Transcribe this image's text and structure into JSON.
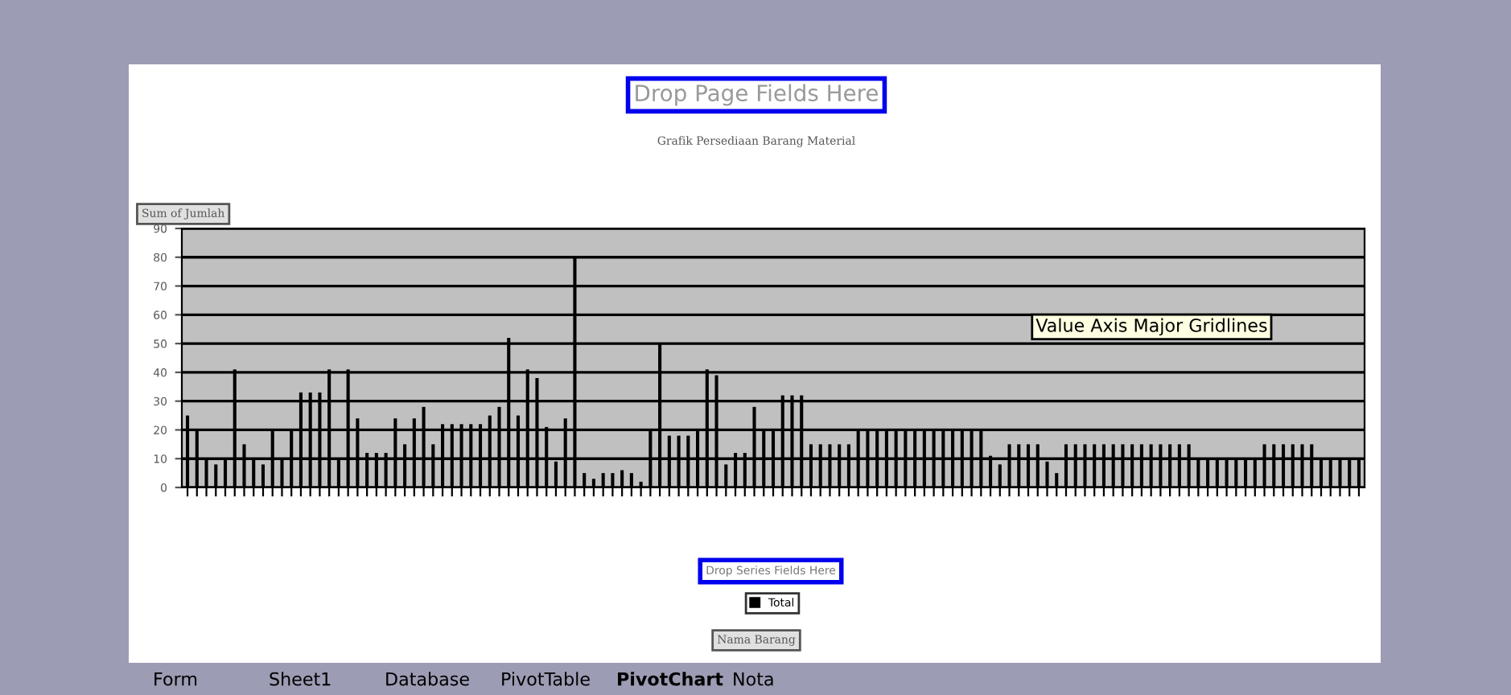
{
  "chart_data": {
    "type": "bar",
    "title": "Grafik Persediaan Barang Material",
    "ylabel": "Sum of Jumlah",
    "categories": [
      null,
      null,
      null,
      null,
      null,
      null,
      null,
      null,
      null,
      null,
      null,
      null,
      null,
      null,
      null,
      null,
      null,
      null,
      null,
      null,
      null,
      null,
      null,
      null,
      null,
      null,
      null,
      null,
      null,
      null,
      null,
      null,
      null,
      null,
      null,
      null,
      null,
      null,
      null,
      null,
      null,
      null,
      null,
      null,
      null,
      null,
      null,
      null,
      null,
      null,
      null,
      null,
      null,
      null,
      null,
      null,
      null,
      null,
      null,
      null,
      null,
      null,
      null,
      null,
      null,
      null,
      null,
      null,
      null,
      null,
      null,
      null,
      null,
      null,
      null,
      null,
      null,
      null,
      null,
      null,
      null,
      null,
      null,
      null,
      null,
      null,
      null,
      null,
      null,
      null,
      null,
      null,
      null,
      null,
      null,
      null,
      null,
      null,
      null,
      null,
      null,
      null,
      null,
      null,
      null,
      null,
      null,
      null,
      null,
      null,
      null,
      null,
      null,
      null,
      null,
      null,
      null,
      null,
      null,
      null,
      null,
      null,
      null,
      null,
      null
    ],
    "series": [
      {
        "name": "Total",
        "color": "#000000",
        "values": [
          25,
          20,
          10,
          8,
          10,
          41,
          15,
          10,
          8,
          20,
          10,
          20,
          33,
          33,
          33,
          41,
          10,
          41,
          24,
          12,
          12,
          12,
          24,
          15,
          24,
          28,
          15,
          22,
          22,
          22,
          22,
          22,
          25,
          28,
          52,
          25,
          41,
          38,
          21,
          9,
          24,
          80,
          5,
          3,
          5,
          5,
          6,
          5,
          2,
          20,
          50,
          18,
          18,
          18,
          20,
          41,
          39,
          8,
          12,
          12,
          28,
          20,
          20,
          32,
          32,
          32,
          15,
          15,
          15,
          15,
          15,
          20,
          20,
          20,
          20,
          20,
          20,
          20,
          20,
          20,
          20,
          20,
          20,
          20,
          20,
          11,
          8,
          15,
          15,
          15,
          15,
          9,
          5,
          15,
          15,
          15,
          15,
          15,
          15,
          15,
          15,
          15,
          15,
          15,
          15,
          15,
          15,
          10,
          10,
          10,
          10,
          10,
          10,
          10,
          15,
          15,
          15,
          15,
          15,
          15,
          10,
          10,
          10,
          10,
          10
        ]
      }
    ],
    "ylim": [
      0,
      90
    ],
    "yticks": [
      0,
      10,
      20,
      30,
      40,
      50,
      60,
      70,
      80,
      90
    ],
    "grid": "y",
    "legend": "bottom",
    "annotations": [
      "Drop Page Fields Here",
      "Drop Series Fields Here",
      "Value Axis Major Gridlines",
      "Form",
      "Sheet1",
      "Database",
      "PivotTable",
      "PivotChart",
      "Nota",
      "Nama Barang"
    ]
  }
}
